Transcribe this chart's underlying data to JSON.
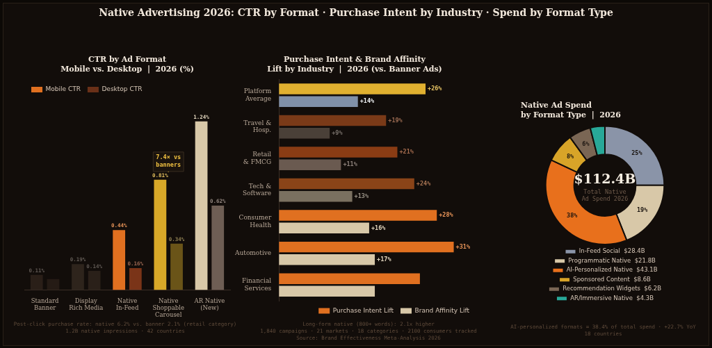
{
  "chart_data": [
    {
      "type": "bar",
      "title": "Native Advertising 2026: CTR by Format · Purchase Intent by Industry · Spend by Format Type",
      "subtitle": "CTR by Ad Format\nMobile vs. Desktop  |  2026 (%)",
      "categories": [
        "Standard\nBanner",
        "Display\nRich Media",
        "Native\nIn-Feed",
        "Native\nShoppable\nCarousel",
        "AR Native\n(New)"
      ],
      "series": [
        {
          "name": "Mobile CTR",
          "color": "#e07020",
          "colors": [
            "#2a1f18",
            "#2e241c",
            "#e07020",
            "#d8a828",
            "#d8c8a8"
          ],
          "values": [
            0.11,
            0.19,
            0.44,
            0.81,
            1.24
          ],
          "value_labels": [
            "0.11%",
            "0.19%",
            "0.44%",
            "0.81%",
            "1.24%"
          ]
        },
        {
          "name": "Desktop CTR",
          "color": "#6a3018",
          "colors": [
            "#251b15",
            "#2a2019",
            "#7a3418",
            "#6a5418",
            "#6e5e54"
          ],
          "values": [
            0.08,
            0.14,
            0.16,
            0.34,
            0.62
          ],
          "value_labels": [
            null,
            "0.14%",
            "0.16%",
            "0.34%",
            "0.62%"
          ]
        }
      ],
      "legend": "top left",
      "tick_labels": "x",
      "annotations": [
        {
          "text": "7.4× vs\nbanners",
          "x": "Native\nShoppable\nCarousel",
          "y": 0.81
        },
        "Post-click purchase rate: native 6.2% vs. banner 2.1% (retail category)",
        "1.2B native impressions · 42 countries"
      ]
    },
    {
      "type": "bar",
      "orientation": "horizontal",
      "title": "Purchase Intent & Brand Affinity\nLift by Industry  |  2026 (vs. Banner Ads)",
      "categories": [
        "Platform\nAverage",
        "Travel &\nHosp.",
        "Retail\n& FMCG",
        "Tech &\nSoftware",
        "Consumer\nHealth",
        "Automotive",
        "Financial\nServices"
      ],
      "series": [
        {
          "name": "Purchase Intent Lift",
          "color": "#e07020",
          "colors": [
            "#e0b030",
            "#7a3a18",
            "#8a3c14",
            "#8a4418",
            "#e07020",
            "#e07020",
            "#e07020"
          ],
          "values": [
            26,
            19,
            21,
            24,
            28,
            31,
            25
          ],
          "value_labels": [
            "+26%",
            "+19%",
            "+21%",
            "+24%",
            "+28%",
            "+31%",
            null
          ]
        },
        {
          "name": "Brand Affinity Lift",
          "color": "#d8c8a8",
          "colors": [
            "#8090a8",
            "#4a4038",
            "#6a5a50",
            "#7a7060",
            "#d8c8a8",
            "#d8c8a8",
            "#d8c8a8"
          ],
          "values": [
            14,
            9,
            11,
            13,
            16,
            17,
            17
          ],
          "value_labels": [
            "+14%",
            "+9%",
            "+11%",
            "+13%",
            "+16%",
            "+17%",
            null
          ]
        }
      ],
      "legend": "bottom right",
      "tick_labels": "y",
      "annotations": [
        "Long-form native (800+ words): 2.1x higher",
        "1,840 campaigns · 21 markets · 18 categories · 2100 consumers tracked",
        "Source: Brand Effectiveness Meta-Analysis 2026"
      ]
    },
    {
      "type": "donut",
      "title": "Native Ad Spend\nby Format Type  |  2026",
      "categories": [
        "In-Feed Social  $28.4B",
        "Programmatic Native  $21.8B",
        "AI-Personalized Native  $43.1B",
        "Sponsored Content  $8.6B",
        "Recommendation Widgets  $6.2B",
        "AR/Immersive Native  $4.3B"
      ],
      "values": [
        25,
        19,
        38,
        8,
        6,
        4
      ],
      "colors": [
        "#8a94a8",
        "#d8c8a8",
        "#e8701c",
        "#d8a428",
        "#7a6654",
        "#28a898"
      ],
      "value_labels": [
        "25%",
        "19%",
        "38%",
        "8%",
        "6%",
        null
      ],
      "legend": "bottom",
      "annotations": [
        "$112.4B",
        "Total Native\nAd Spend 2026",
        "AI-personalized formats = 38.4% of total spend · +22.7% YoY",
        "18 countries"
      ]
    }
  ]
}
